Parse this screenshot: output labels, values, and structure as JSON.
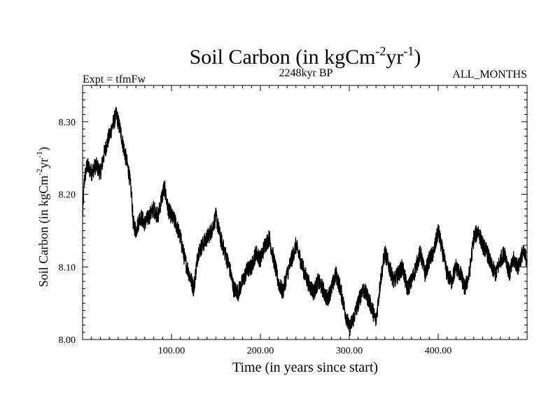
{
  "chart_data": {
    "type": "line",
    "title_main": "Soil Carbon (in kgCm",
    "title_sup1": "-2",
    "title_mid": "yr",
    "title_sup2": "-1",
    "title_end": ")",
    "subtitle_left": "Expt = tfmFw",
    "subtitle_center": "2248kyr BP",
    "subtitle_right": "ALL_MONTHS",
    "xlabel": "Time (in years since start)",
    "ylabel_main": "Soil Carbon (in kgCm",
    "ylabel_sup1": "-2",
    "ylabel_mid": "yr",
    "ylabel_sup2": "-1",
    "ylabel_end": ")",
    "xlim": [
      0,
      500
    ],
    "ylim": [
      8.0,
      8.35
    ],
    "xticks": [
      100,
      200,
      300,
      400
    ],
    "xtick_labels": [
      "100.00",
      "200.00",
      "300.00",
      "400.00"
    ],
    "yticks": [
      8.0,
      8.1,
      8.2,
      8.3
    ],
    "ytick_labels": [
      "8.00",
      "8.10",
      "8.20",
      "8.30"
    ],
    "noise_amplitude": 0.012,
    "series": [
      {
        "name": "Soil Carbon",
        "color": "#000000",
        "x": [
          0,
          2,
          5,
          10,
          15,
          20,
          25,
          30,
          35,
          38,
          42,
          47,
          52,
          55,
          57,
          60,
          65,
          70,
          75,
          80,
          85,
          88,
          92,
          96,
          100,
          105,
          110,
          115,
          120,
          125,
          130,
          135,
          140,
          145,
          150,
          155,
          160,
          165,
          170,
          175,
          180,
          185,
          190,
          195,
          200,
          205,
          210,
          215,
          220,
          225,
          230,
          235,
          240,
          245,
          250,
          255,
          260,
          265,
          270,
          275,
          280,
          285,
          290,
          295,
          300,
          305,
          310,
          315,
          320,
          325,
          330,
          335,
          340,
          345,
          350,
          355,
          360,
          365,
          370,
          375,
          380,
          385,
          390,
          395,
          400,
          405,
          410,
          415,
          420,
          425,
          430,
          435,
          440,
          445,
          450,
          455,
          460,
          465,
          470,
          475,
          480,
          485,
          490,
          495,
          500
        ],
        "y": [
          8.17,
          8.22,
          8.24,
          8.23,
          8.24,
          8.23,
          8.26,
          8.28,
          8.3,
          8.31,
          8.29,
          8.26,
          8.23,
          8.2,
          8.16,
          8.15,
          8.17,
          8.16,
          8.17,
          8.18,
          8.17,
          8.19,
          8.21,
          8.18,
          8.17,
          8.16,
          8.14,
          8.11,
          8.09,
          8.07,
          8.12,
          8.13,
          8.14,
          8.15,
          8.17,
          8.14,
          8.12,
          8.1,
          8.07,
          8.065,
          8.08,
          8.095,
          8.1,
          8.12,
          8.11,
          8.13,
          8.14,
          8.11,
          8.08,
          8.065,
          8.09,
          8.11,
          8.13,
          8.11,
          8.09,
          8.075,
          8.065,
          8.08,
          8.07,
          8.055,
          8.07,
          8.09,
          8.07,
          8.04,
          8.015,
          8.03,
          8.05,
          8.07,
          8.06,
          8.045,
          8.025,
          8.08,
          8.12,
          8.1,
          8.08,
          8.09,
          8.1,
          8.07,
          8.08,
          8.1,
          8.12,
          8.09,
          8.11,
          8.12,
          8.15,
          8.12,
          8.09,
          8.08,
          8.1,
          8.09,
          8.07,
          8.09,
          8.14,
          8.15,
          8.13,
          8.12,
          8.1,
          8.09,
          8.11,
          8.12,
          8.09,
          8.11,
          8.1,
          8.12,
          8.11
        ]
      }
    ]
  }
}
